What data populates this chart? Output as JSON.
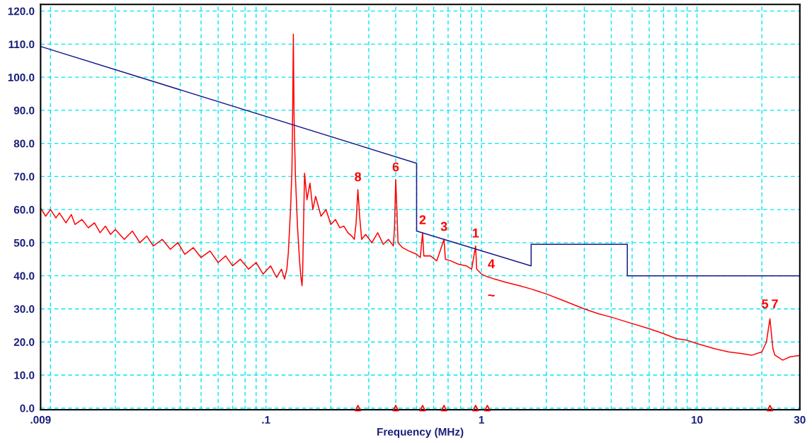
{
  "chart_data": {
    "type": "line",
    "xlabel": "Frequency (MHz)",
    "log": "x",
    "grid": true,
    "marker": "none",
    "line_style": "solid",
    "xlim": [
      0.009,
      30
    ],
    "xticks": [
      {
        "value": 0.009,
        "label": ".009"
      },
      {
        "value": 0.1,
        "label": ".1"
      },
      1,
      10,
      30
    ],
    "ylim": [
      -0.5,
      122
    ],
    "yticks": [
      {
        "value": 0,
        "label": "0.0"
      },
      {
        "value": 10,
        "label": "10.0"
      },
      {
        "value": 20,
        "label": "20.0"
      },
      {
        "value": 30,
        "label": "30.0"
      },
      {
        "value": 40,
        "label": "40.0"
      },
      {
        "value": 50,
        "label": "50.0"
      },
      {
        "value": 60,
        "label": "60.0"
      },
      {
        "value": 70,
        "label": "70.0"
      },
      {
        "value": 80,
        "label": "80.0"
      },
      {
        "value": 90,
        "label": "90.0"
      },
      {
        "value": 100,
        "label": "100.0"
      },
      {
        "value": 110,
        "label": "110.0"
      },
      {
        "value": 120,
        "label": "120.0"
      }
    ],
    "series": [
      {
        "color": "#ff0000",
        "x": [
          0.009,
          0.0095,
          0.01,
          0.0106,
          0.011,
          0.0118,
          0.0125,
          0.013,
          0.014,
          0.015,
          0.016,
          0.017,
          0.018,
          0.019,
          0.02,
          0.022,
          0.024,
          0.026,
          0.028,
          0.03,
          0.033,
          0.036,
          0.039,
          0.042,
          0.046,
          0.05,
          0.055,
          0.06,
          0.065,
          0.07,
          0.076,
          0.083,
          0.09,
          0.097,
          0.105,
          0.112,
          0.118,
          0.122,
          0.125,
          0.127,
          0.13,
          0.132,
          0.133,
          0.134,
          0.135,
          0.137,
          0.14,
          0.143,
          0.145,
          0.147,
          0.148,
          0.151,
          0.155,
          0.16,
          0.165,
          0.17,
          0.18,
          0.19,
          0.2,
          0.21,
          0.22,
          0.23,
          0.24,
          0.25,
          0.257,
          0.262,
          0.267,
          0.272,
          0.278,
          0.29,
          0.31,
          0.33,
          0.35,
          0.37,
          0.39,
          0.395,
          0.4,
          0.405,
          0.41,
          0.43,
          0.46,
          0.5,
          0.52,
          0.533,
          0.54,
          0.58,
          0.62,
          0.67,
          0.68,
          0.72,
          0.78,
          0.85,
          0.9,
          0.939,
          0.95,
          1.0,
          1.065,
          1.15,
          1.3,
          1.5,
          1.7,
          2.0,
          2.4,
          3.0,
          3.5,
          4.0,
          4.75,
          6,
          7,
          8,
          9,
          10,
          12,
          14,
          16,
          18,
          20,
          21,
          21.8,
          22.5,
          23,
          25,
          27,
          30
        ],
        "values": [
          60.5,
          58,
          60,
          57.5,
          59,
          56,
          58.5,
          55.5,
          57,
          54.5,
          56,
          53,
          55,
          52.5,
          54,
          51,
          53.5,
          50,
          52,
          49,
          51,
          48,
          50,
          46.5,
          48.5,
          45.5,
          47.5,
          44,
          46,
          43,
          45,
          42,
          44,
          40.5,
          43,
          39.5,
          42,
          39,
          42,
          47,
          60,
          72,
          90,
          113,
          88,
          70,
          55,
          45,
          40,
          37,
          41,
          71,
          63,
          68,
          60,
          64,
          58,
          60,
          55.5,
          57,
          54.5,
          55,
          53,
          52,
          51,
          56,
          66,
          58,
          51,
          52.5,
          50,
          53,
          49.5,
          51,
          49,
          55,
          69,
          60,
          50,
          48.5,
          47.5,
          46.5,
          45.5,
          53,
          46,
          46,
          44.5,
          51,
          45,
          44.5,
          43.5,
          43,
          42,
          49,
          42,
          40.5,
          39.7,
          39,
          38,
          37,
          36,
          34.5,
          32.5,
          30,
          28.5,
          27.5,
          26,
          24,
          22.5,
          21,
          20.5,
          19.5,
          18,
          17,
          16.5,
          16,
          17,
          20,
          27,
          18,
          16,
          14.5,
          15.5,
          15.9
        ]
      },
      {
        "color": "#1a1a8c",
        "x": [
          0.009,
          0.5,
          0.5,
          1.7,
          1.7,
          4.75,
          4.75,
          30
        ],
        "values": [
          109.3,
          74,
          53.5,
          43,
          49.5,
          49.5,
          40,
          40
        ]
      },
      {
        "type": "scatter",
        "color": "#ff0000",
        "marker": "triangle",
        "x": [
          0.267,
          0.4,
          0.533,
          0.67,
          0.939,
          1.065,
          21.8
        ],
        "values": [
          0,
          0,
          0,
          0,
          0,
          0,
          0
        ]
      }
    ],
    "annotations": [
      {
        "text": "8",
        "x": 0.267,
        "y": 66
      },
      {
        "text": "6",
        "x": 0.4,
        "y": 69
      },
      {
        "text": "2",
        "x": 0.533,
        "y": 53
      },
      {
        "text": "3",
        "x": 0.67,
        "y": 51
      },
      {
        "text": "1",
        "x": 0.939,
        "y": 49
      },
      {
        "text": "4",
        "x": 1.065,
        "y": 39.7
      },
      {
        "text": "~",
        "x": 1.065,
        "y": 39.7
      },
      {
        "text": "5",
        "x": 21.8,
        "y": 27
      },
      {
        "text": "7",
        "x": 21.8,
        "y": 27
      }
    ]
  }
}
